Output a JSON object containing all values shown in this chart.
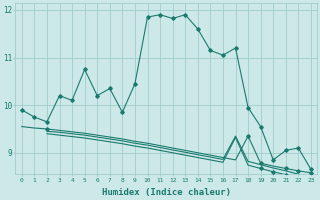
{
  "xlabel": "Humidex (Indice chaleur)",
  "bg_color": "#cce8e8",
  "grid_color": "#a0cccc",
  "line_color": "#1a7a6e",
  "xlim": [
    -0.5,
    23.5
  ],
  "ylim": [
    8.55,
    12.15
  ],
  "yticks": [
    9,
    10,
    11,
    12
  ],
  "xticks": [
    0,
    1,
    2,
    3,
    4,
    5,
    6,
    7,
    8,
    9,
    10,
    11,
    12,
    13,
    14,
    15,
    16,
    17,
    18,
    19,
    20,
    21,
    22,
    23
  ],
  "line1_x": [
    0,
    1,
    2,
    3,
    4,
    5,
    6,
    7,
    8,
    9,
    10,
    11,
    12,
    13,
    14,
    15,
    16,
    17,
    18,
    19,
    20,
    21,
    22,
    23
  ],
  "line1_y": [
    9.9,
    9.75,
    9.65,
    10.2,
    10.1,
    10.75,
    10.2,
    10.35,
    9.85,
    10.45,
    11.85,
    11.9,
    11.82,
    11.9,
    11.6,
    11.15,
    11.05,
    11.2,
    9.95,
    9.55,
    8.85,
    9.05,
    9.1,
    8.65
  ],
  "line2_x": [
    0,
    1,
    2,
    3,
    4,
    5,
    6,
    7,
    8,
    9,
    10,
    11,
    12,
    13,
    14,
    15,
    16,
    17,
    18,
    19,
    20,
    21,
    22,
    23
  ],
  "line2_y": [
    9.55,
    9.52,
    9.5,
    9.47,
    9.44,
    9.41,
    9.37,
    9.33,
    9.29,
    9.24,
    9.2,
    9.15,
    9.1,
    9.05,
    9.0,
    8.95,
    8.9,
    8.85,
    9.35,
    8.78,
    8.72,
    8.67,
    8.62,
    8.58
  ],
  "line3_x": [
    2,
    3,
    4,
    5,
    6,
    7,
    8,
    9,
    10,
    11,
    12,
    13,
    14,
    15,
    16,
    17,
    18,
    19,
    20,
    21,
    22,
    23
  ],
  "line3_y": [
    9.45,
    9.43,
    9.4,
    9.37,
    9.33,
    9.29,
    9.25,
    9.2,
    9.16,
    9.11,
    9.06,
    9.01,
    8.96,
    8.91,
    8.86,
    9.35,
    8.82,
    8.75,
    8.68,
    8.62,
    8.55,
    8.5
  ],
  "line4_x": [
    2,
    3,
    4,
    5,
    6,
    7,
    8,
    9,
    10,
    11,
    12,
    13,
    14,
    15,
    16,
    17,
    18,
    19,
    20,
    21,
    22,
    23
  ],
  "line4_y": [
    9.4,
    9.37,
    9.34,
    9.31,
    9.27,
    9.23,
    9.19,
    9.14,
    9.1,
    9.05,
    9.0,
    8.95,
    8.9,
    8.85,
    8.8,
    9.32,
    8.74,
    8.67,
    8.6,
    8.54,
    8.48,
    8.43
  ],
  "line2_markers_x": [
    2,
    18,
    19,
    21,
    22,
    23
  ],
  "line2_markers_y": [
    9.5,
    9.35,
    8.78,
    8.67,
    8.62,
    8.58
  ],
  "line4_markers_x": [
    19,
    20,
    21,
    22,
    23
  ],
  "line4_markers_y": [
    8.67,
    8.6,
    8.54,
    8.48,
    8.43
  ]
}
